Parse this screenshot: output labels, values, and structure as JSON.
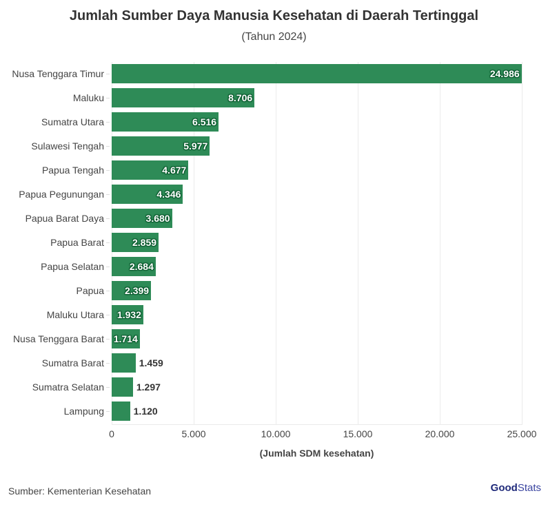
{
  "header": {
    "title": "Jumlah Sumber Daya Manusia Kesehatan di Daerah Tertinggal",
    "subtitle": "(Tahun 2024)"
  },
  "footer": {
    "source": "Sumber: Kementerian Kesehatan",
    "logo_bold": "Good",
    "logo_light": "Stats"
  },
  "colors": {
    "bar": "#2e8b57",
    "label_dark": "#333333"
  },
  "chart_data": {
    "type": "bar",
    "orientation": "horizontal",
    "title": "Jumlah Sumber Daya Manusia Kesehatan di Daerah Tertinggal",
    "subtitle": "(Tahun 2024)",
    "xlabel": "(Jumlah SDM kesehatan)",
    "ylabel": "",
    "xlim": [
      0,
      25000
    ],
    "xticks": [
      "0",
      "5.000",
      "10.000",
      "15.000",
      "20.000",
      "25.000"
    ],
    "grid": true,
    "legend": null,
    "categories": [
      "Nusa Tenggara Timur",
      "Maluku",
      "Sumatra Utara",
      "Sulawesi Tengah",
      "Papua Tengah",
      "Papua Pegunungan",
      "Papua Barat Daya",
      "Papua Barat",
      "Papua Selatan",
      "Papua",
      "Maluku Utara",
      "Nusa Tenggara Barat",
      "Sumatra Barat",
      "Sumatra Selatan",
      "Lampung"
    ],
    "values": [
      24986,
      8706,
      6516,
      5977,
      4677,
      4346,
      3680,
      2859,
      2684,
      2399,
      1932,
      1714,
      1459,
      1297,
      1120
    ],
    "value_labels": [
      "24.986",
      "8.706",
      "6.516",
      "5.977",
      "4.677",
      "4.346",
      "3.680",
      "2.859",
      "2.684",
      "2.399",
      "1.932",
      "1.714",
      "1.459",
      "1.297",
      "1.120"
    ]
  }
}
